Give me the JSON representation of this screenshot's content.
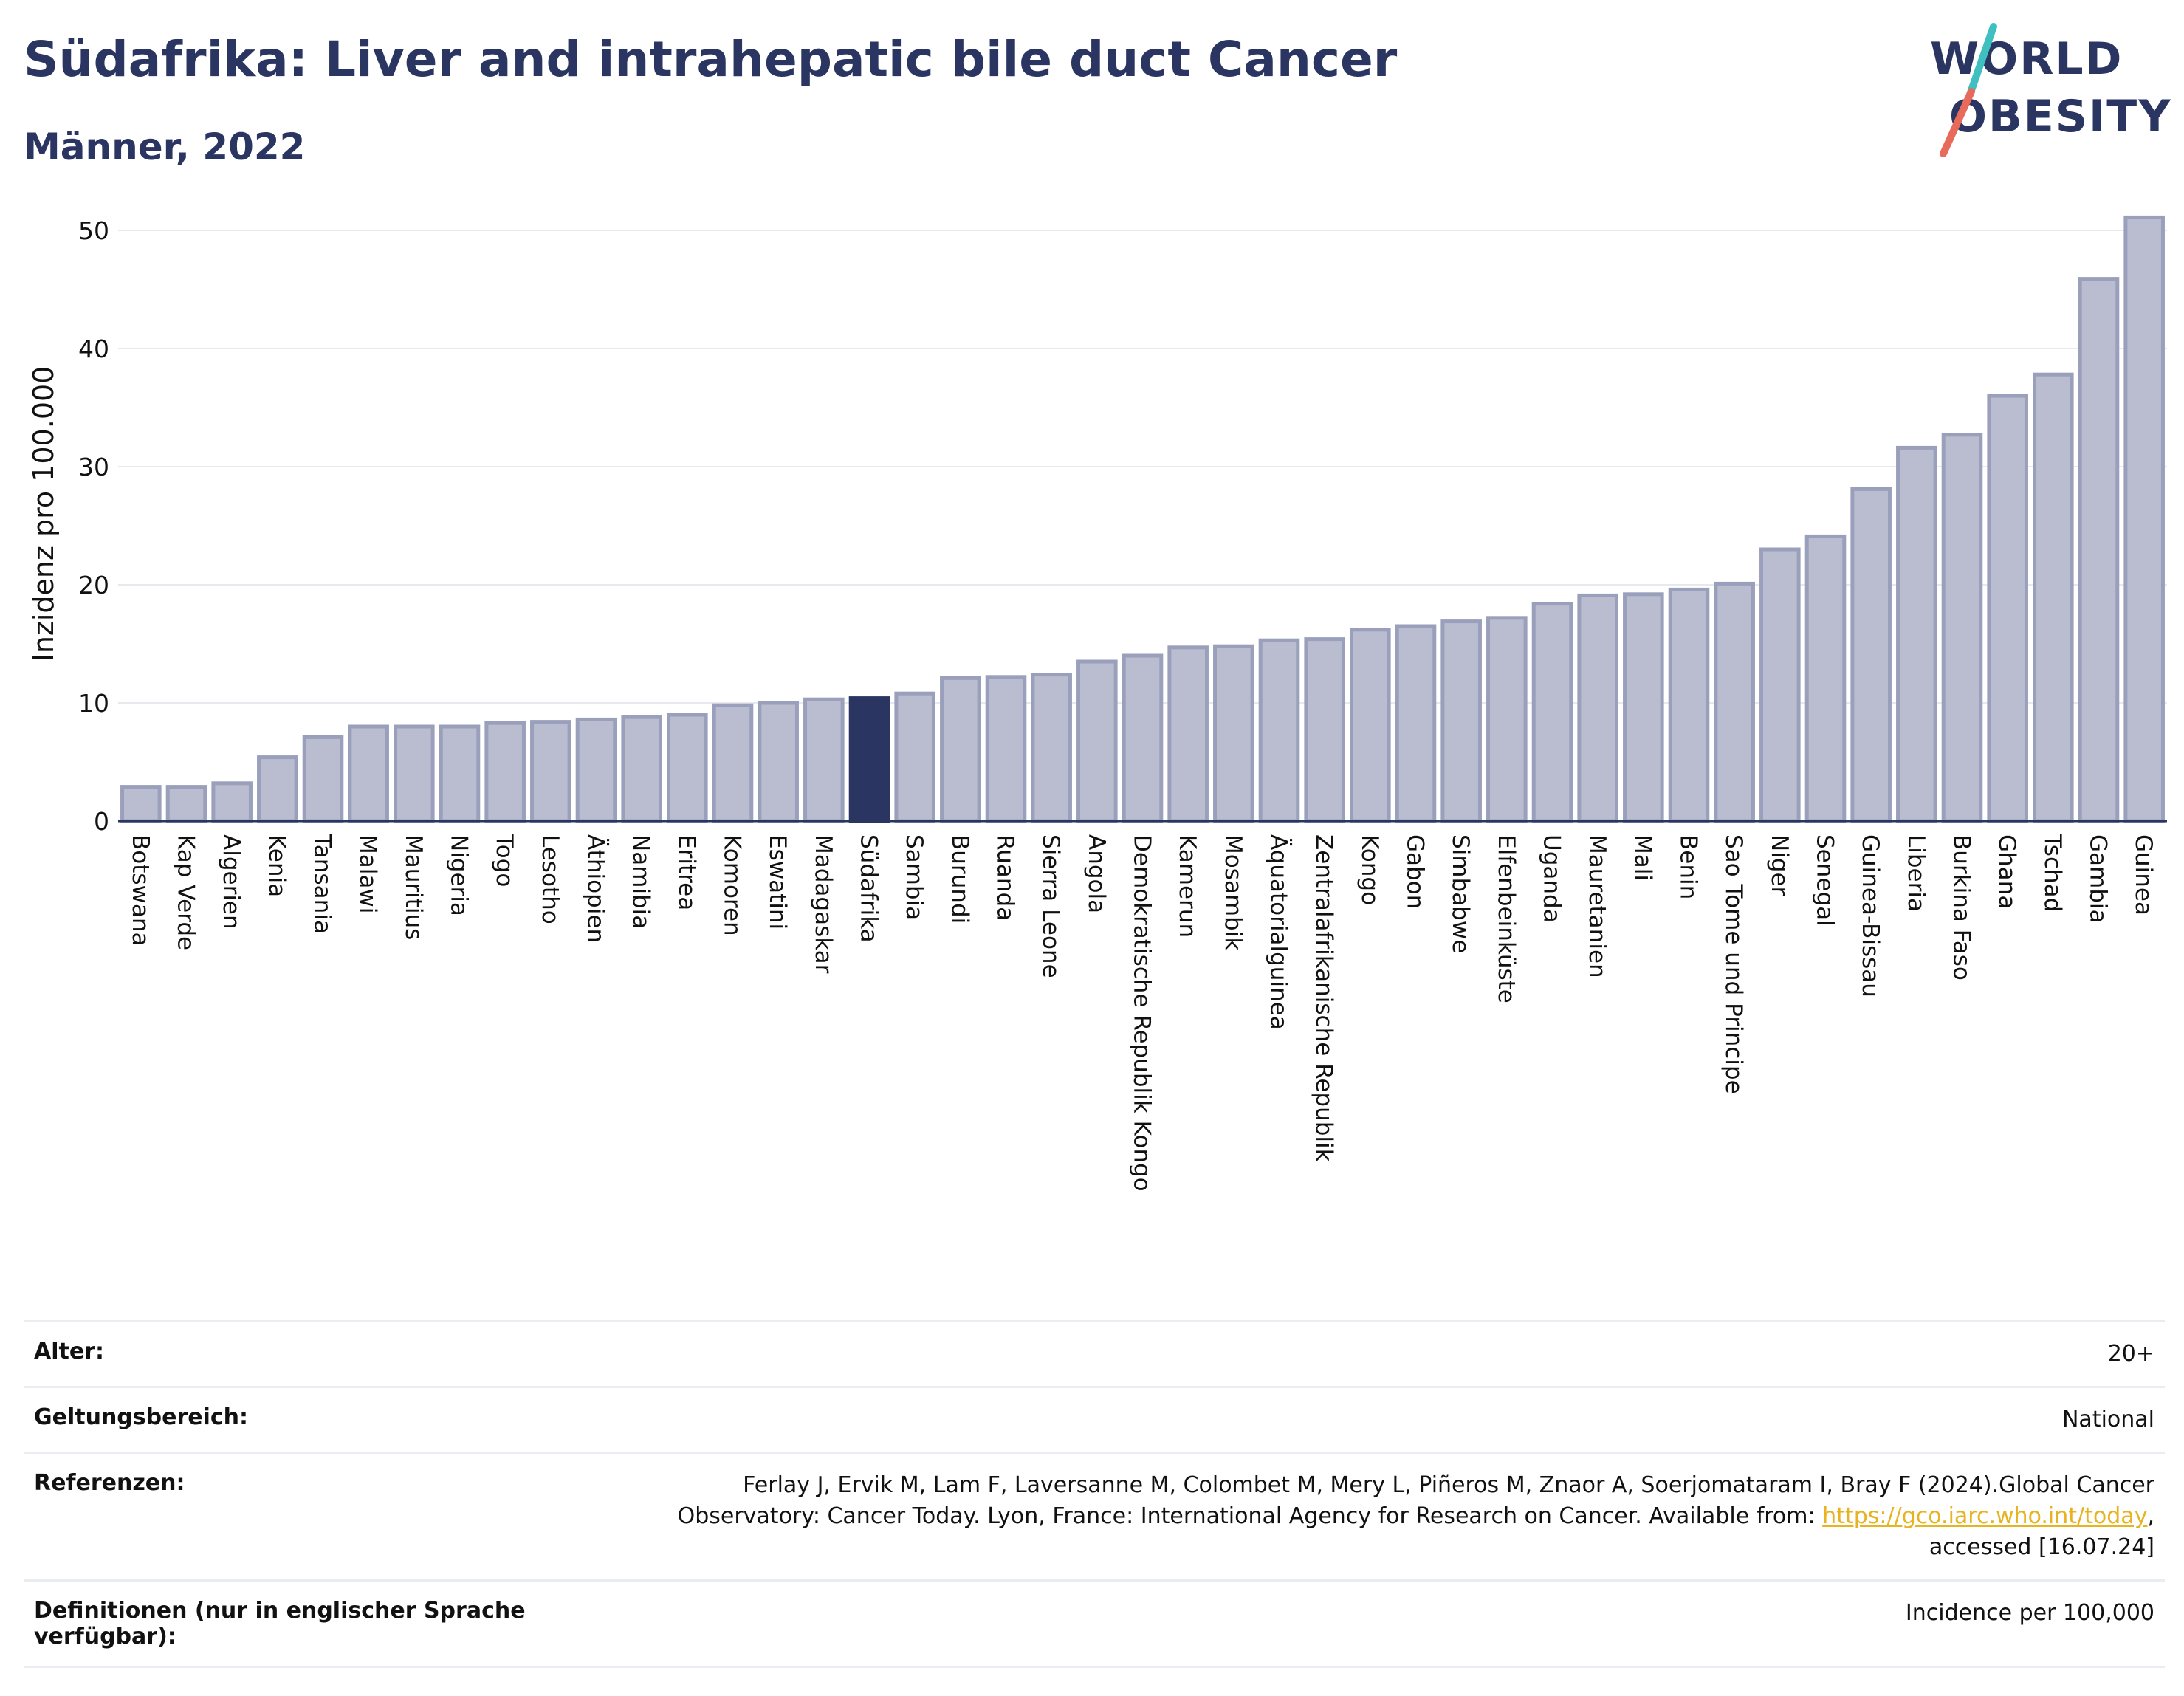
{
  "header": {
    "title": "Südafrika: Liver and intrahepatic bile duct Cancer",
    "subtitle": "Männer, 2022"
  },
  "logo": {
    "line1": "WORLD",
    "line2": "OBESITY",
    "accent_colors": [
      "#3fbfbf",
      "#e86a5a"
    ]
  },
  "chart_data": {
    "type": "bar",
    "ylabel": "Inzidenz pro 100.000",
    "ylim": [
      0,
      52
    ],
    "yticks": [
      0,
      10,
      20,
      30,
      40,
      50
    ],
    "grid": true,
    "highlight": "Südafrika",
    "colors": {
      "bar": "#b9bdcf",
      "bar_edge": "#9aa0bb",
      "highlight": "#2b3561"
    },
    "categories": [
      "Botswana",
      "Kap Verde",
      "Algerien",
      "Kenia",
      "Tansania",
      "Malawi",
      "Mauritius",
      "Nigeria",
      "Togo",
      "Lesotho",
      "Äthiopien",
      "Namibia",
      "Eritrea",
      "Komoren",
      "Eswatini",
      "Madagaskar",
      "Südafrika",
      "Sambia",
      "Burundi",
      "Ruanda",
      "Sierra Leone",
      "Angola",
      "Demokratische Republik Kongo",
      "Kamerun",
      "Mosambik",
      "Äquatorialguinea",
      "Zentralafrikanische Republik",
      "Kongo",
      "Gabon",
      "Simbabwe",
      "Elfenbeinküste",
      "Uganda",
      "Mauretanien",
      "Mali",
      "Benin",
      "Sao Tome und Principe",
      "Niger",
      "Senegal",
      "Guinea-Bissau",
      "Liberia",
      "Burkina Faso",
      "Ghana",
      "Tschad",
      "Gambia",
      "Guinea"
    ],
    "values": [
      2.9,
      2.9,
      3.2,
      5.4,
      7.1,
      8.0,
      8.0,
      8.0,
      8.3,
      8.4,
      8.6,
      8.8,
      9.0,
      9.8,
      10.0,
      10.3,
      10.4,
      10.8,
      12.1,
      12.2,
      12.4,
      13.5,
      14.0,
      14.7,
      14.8,
      15.3,
      15.4,
      16.2,
      16.5,
      16.9,
      17.2,
      18.4,
      19.1,
      19.2,
      19.6,
      20.1,
      23.0,
      24.1,
      28.1,
      31.6,
      32.7,
      36.0,
      37.8,
      45.9,
      51.1
    ]
  },
  "meta": {
    "age_label": "Alter:",
    "age_value": "20+",
    "scope_label": "Geltungsbereich:",
    "scope_value": "National",
    "ref_label": "Referenzen:",
    "ref_text_1": "Ferlay J, Ervik M, Lam F, Laversanne M, Colombet M, Mery L, Piñeros M, Znaor A, Soerjomataram I, Bray F (2024).Global Cancer",
    "ref_text_2": "Observatory: Cancer Today. Lyon, France: International Agency for Research on Cancer. Available from: ",
    "ref_link": "https://gco.iarc.who.int/today",
    "ref_text_3": ",",
    "ref_text_4": "accessed [16.07.24]",
    "def_label": "Definitionen (nur in englischer Sprache verfügbar):",
    "def_value": "Incidence per 100,000"
  }
}
